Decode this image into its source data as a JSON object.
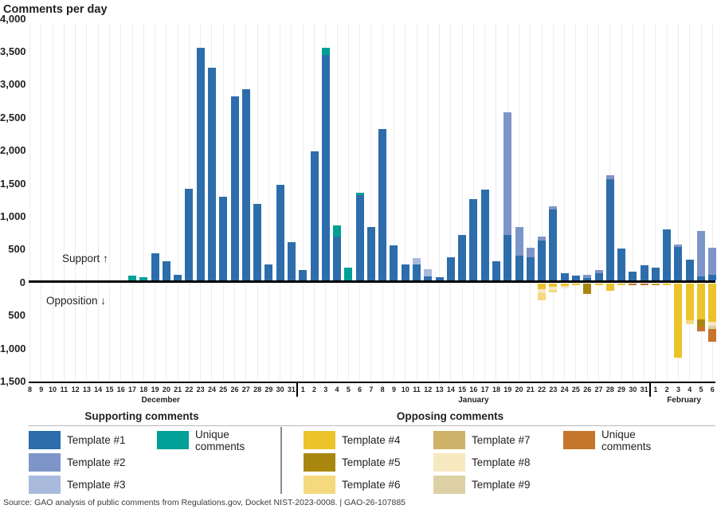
{
  "title": "Comments per day",
  "annotations": {
    "support": "Support ↑",
    "opposition": "Opposition ↓"
  },
  "source": "Source: GAO analysis of public comments from Regulations.gov, Docket NIST-2023-0008.  |  GAO-26-107885",
  "colors": {
    "t1": "#2d6dab",
    "t2": "#7e95c9",
    "t3": "#a9badd",
    "us": "#00a096",
    "t4": "#edc32b",
    "t5": "#a9870f",
    "t6": "#f4d97e",
    "t7": "#cfb269",
    "t8": "#f6e8bf",
    "t9": "#ddd0a4",
    "uo": "#c6752c"
  },
  "legend": {
    "supporting": {
      "header": "Supporting comments",
      "items": [
        {
          "key": "t1",
          "label": "Template #1",
          "col": 0,
          "row": 0
        },
        {
          "key": "t2",
          "label": "Template #2",
          "col": 0,
          "row": 1
        },
        {
          "key": "t3",
          "label": "Template #3",
          "col": 0,
          "row": 2
        },
        {
          "key": "us",
          "label": "Unique comments",
          "col": 1,
          "row": 0,
          "wrap": true
        }
      ]
    },
    "opposing": {
      "header": "Opposing comments",
      "items": [
        {
          "key": "t4",
          "label": "Template #4",
          "col": 0,
          "row": 0
        },
        {
          "key": "t5",
          "label": "Template #5",
          "col": 0,
          "row": 1
        },
        {
          "key": "t6",
          "label": "Template #6",
          "col": 0,
          "row": 2
        },
        {
          "key": "t7",
          "label": "Template #7",
          "col": 1,
          "row": 0
        },
        {
          "key": "t8",
          "label": "Template #8",
          "col": 1,
          "row": 1
        },
        {
          "key": "t9",
          "label": "Template #9",
          "col": 1,
          "row": 2
        },
        {
          "key": "uo",
          "label": "Unique comments",
          "col": 2,
          "row": 0,
          "wrap": true
        }
      ]
    }
  },
  "chart_data": {
    "type": "bar",
    "stacked": true,
    "title": "Comments per day",
    "y_axis_labels": [
      "4,000",
      "3,500",
      "3,000",
      "2,500",
      "2,000",
      "1,500",
      "1,000",
      "500",
      "0",
      "500",
      "1,000",
      "1,500"
    ],
    "y_max": 4000,
    "y_min": -1500,
    "grid": "vertical-per-day",
    "months": [
      "December",
      "January",
      "February"
    ],
    "days": [
      {
        "month": "December",
        "day": 8,
        "support": [],
        "oppose": []
      },
      {
        "month": "December",
        "day": 9,
        "support": [],
        "oppose": []
      },
      {
        "month": "December",
        "day": 10,
        "support": [],
        "oppose": []
      },
      {
        "month": "December",
        "day": 11,
        "support": [],
        "oppose": []
      },
      {
        "month": "December",
        "day": 12,
        "support": [],
        "oppose": []
      },
      {
        "month": "December",
        "day": 13,
        "support": [],
        "oppose": []
      },
      {
        "month": "December",
        "day": 14,
        "support": [],
        "oppose": []
      },
      {
        "month": "December",
        "day": 15,
        "support": [],
        "oppose": []
      },
      {
        "month": "December",
        "day": 16,
        "support": [],
        "oppose": []
      },
      {
        "month": "December",
        "day": 17,
        "support": [
          [
            "us",
            80
          ]
        ],
        "oppose": []
      },
      {
        "month": "December",
        "day": 18,
        "support": [
          [
            "us",
            50
          ]
        ],
        "oppose": []
      },
      {
        "month": "December",
        "day": 19,
        "support": [
          [
            "t1",
            420
          ]
        ],
        "oppose": []
      },
      {
        "month": "December",
        "day": 20,
        "support": [
          [
            "t1",
            300
          ]
        ],
        "oppose": []
      },
      {
        "month": "December",
        "day": 21,
        "support": [
          [
            "t1",
            85
          ]
        ],
        "oppose": []
      },
      {
        "month": "December",
        "day": 22,
        "support": [
          [
            "t1",
            1390
          ]
        ],
        "oppose": []
      },
      {
        "month": "December",
        "day": 23,
        "support": [
          [
            "t1",
            3530
          ]
        ],
        "oppose": []
      },
      {
        "month": "December",
        "day": 24,
        "support": [
          [
            "t1",
            3230
          ]
        ],
        "oppose": []
      },
      {
        "month": "December",
        "day": 25,
        "support": [
          [
            "t1",
            1270
          ]
        ],
        "oppose": []
      },
      {
        "month": "December",
        "day": 26,
        "support": [
          [
            "t1",
            2790
          ]
        ],
        "oppose": []
      },
      {
        "month": "December",
        "day": 27,
        "support": [
          [
            "t1",
            2910
          ]
        ],
        "oppose": []
      },
      {
        "month": "December",
        "day": 28,
        "support": [
          [
            "t1",
            1170
          ]
        ],
        "oppose": []
      },
      {
        "month": "December",
        "day": 29,
        "support": [
          [
            "t1",
            250
          ]
        ],
        "oppose": []
      },
      {
        "month": "December",
        "day": 30,
        "support": [
          [
            "t1",
            1460
          ]
        ],
        "oppose": []
      },
      {
        "month": "December",
        "day": 31,
        "support": [
          [
            "t1",
            590
          ]
        ],
        "oppose": []
      },
      {
        "month": "January",
        "day": 1,
        "support": [
          [
            "t1",
            160
          ]
        ],
        "oppose": []
      },
      {
        "month": "January",
        "day": 2,
        "support": [
          [
            "t1",
            1960
          ]
        ],
        "oppose": []
      },
      {
        "month": "January",
        "day": 3,
        "support": [
          [
            "t1",
            3420
          ],
          [
            "us",
            110
          ]
        ],
        "oppose": []
      },
      {
        "month": "January",
        "day": 4,
        "support": [
          [
            "t1",
            675
          ],
          [
            "us",
            170
          ]
        ],
        "oppose": []
      },
      {
        "month": "January",
        "day": 5,
        "support": [
          [
            "us",
            195
          ]
        ],
        "oppose": []
      },
      {
        "month": "January",
        "day": 6,
        "support": [
          [
            "t1",
            1300
          ],
          [
            "us",
            35
          ]
        ],
        "oppose": []
      },
      {
        "month": "January",
        "day": 7,
        "support": [
          [
            "t1",
            820
          ]
        ],
        "oppose": []
      },
      {
        "month": "January",
        "day": 8,
        "support": [
          [
            "t1",
            2295
          ]
        ],
        "oppose": []
      },
      {
        "month": "January",
        "day": 9,
        "support": [
          [
            "t1",
            540
          ]
        ],
        "oppose": []
      },
      {
        "month": "January",
        "day": 10,
        "support": [
          [
            "t1",
            250
          ]
        ],
        "oppose": []
      },
      {
        "month": "January",
        "day": 11,
        "support": [
          [
            "t1",
            250
          ],
          [
            "t3",
            100
          ]
        ],
        "oppose": []
      },
      {
        "month": "January",
        "day": 12,
        "support": [
          [
            "t1",
            70
          ],
          [
            "t3",
            110
          ]
        ],
        "oppose": []
      },
      {
        "month": "January",
        "day": 13,
        "support": [
          [
            "t1",
            55
          ]
        ],
        "oppose": []
      },
      {
        "month": "January",
        "day": 14,
        "support": [
          [
            "t1",
            360
          ]
        ],
        "oppose": []
      },
      {
        "month": "January",
        "day": 15,
        "support": [
          [
            "t1",
            700
          ]
        ],
        "oppose": []
      },
      {
        "month": "January",
        "day": 16,
        "support": [
          [
            "t1",
            1240
          ]
        ],
        "oppose": []
      },
      {
        "month": "January",
        "day": 17,
        "support": [
          [
            "t1",
            1380
          ]
        ],
        "oppose": []
      },
      {
        "month": "January",
        "day": 18,
        "support": [
          [
            "t1",
            300
          ]
        ],
        "oppose": []
      },
      {
        "month": "January",
        "day": 19,
        "support": [
          [
            "t1",
            690
          ],
          [
            "t2",
            1860
          ]
        ],
        "oppose": []
      },
      {
        "month": "January",
        "day": 20,
        "support": [
          [
            "t1",
            385
          ],
          [
            "t2",
            435
          ]
        ],
        "oppose": []
      },
      {
        "month": "January",
        "day": 21,
        "support": [
          [
            "t1",
            360
          ],
          [
            "t2",
            145
          ]
        ],
        "oppose": []
      },
      {
        "month": "January",
        "day": 22,
        "support": [
          [
            "t1",
            615
          ],
          [
            "t2",
            60
          ]
        ],
        "oppose": [
          [
            "t4",
            95
          ],
          [
            "t8",
            55
          ],
          [
            "t6",
            110
          ]
        ]
      },
      {
        "month": "January",
        "day": 23,
        "support": [
          [
            "t1",
            1075
          ],
          [
            "t2",
            50
          ]
        ],
        "oppose": [
          [
            "t4",
            55
          ],
          [
            "t8",
            45
          ],
          [
            "t6",
            40
          ]
        ]
      },
      {
        "month": "January",
        "day": 24,
        "support": [
          [
            "t1",
            120
          ]
        ],
        "oppose": [
          [
            "t4",
            40
          ],
          [
            "t8",
            40
          ]
        ]
      },
      {
        "month": "January",
        "day": 25,
        "support": [
          [
            "t1",
            75
          ]
        ],
        "oppose": [
          [
            "t4",
            30
          ]
        ]
      },
      {
        "month": "January",
        "day": 26,
        "support": [
          [
            "t1",
            45
          ],
          [
            "t2",
            45
          ]
        ],
        "oppose": [
          [
            "t5",
            160
          ]
        ]
      },
      {
        "month": "January",
        "day": 27,
        "support": [
          [
            "t1",
            120
          ],
          [
            "t2",
            40
          ]
        ],
        "oppose": [
          [
            "t4",
            35
          ]
        ]
      },
      {
        "month": "January",
        "day": 28,
        "support": [
          [
            "t1",
            1535
          ],
          [
            "t2",
            60
          ]
        ],
        "oppose": [
          [
            "t4",
            110
          ]
        ]
      },
      {
        "month": "January",
        "day": 29,
        "support": [
          [
            "t1",
            495
          ]
        ],
        "oppose": [
          [
            "t4",
            25
          ]
        ]
      },
      {
        "month": "January",
        "day": 30,
        "support": [
          [
            "t1",
            135
          ]
        ],
        "oppose": [
          [
            "uo",
            30
          ]
        ]
      },
      {
        "month": "January",
        "day": 31,
        "support": [
          [
            "t1",
            240
          ]
        ],
        "oppose": [
          [
            "uo",
            30
          ]
        ]
      },
      {
        "month": "February",
        "day": 1,
        "support": [
          [
            "t1",
            205
          ]
        ],
        "oppose": [
          [
            "t4",
            15
          ],
          [
            "uo",
            15
          ]
        ]
      },
      {
        "month": "February",
        "day": 2,
        "support": [
          [
            "t1",
            775
          ]
        ],
        "oppose": [
          [
            "t4",
            25
          ]
        ]
      },
      {
        "month": "February",
        "day": 3,
        "support": [
          [
            "t1",
            515
          ],
          [
            "t2",
            40
          ]
        ],
        "oppose": [
          [
            "t4",
            1135
          ]
        ]
      },
      {
        "month": "February",
        "day": 4,
        "support": [
          [
            "t1",
            315
          ]
        ],
        "oppose": [
          [
            "t4",
            560
          ],
          [
            "t6",
            60
          ]
        ]
      },
      {
        "month": "February",
        "day": 5,
        "support": [
          [
            "t1",
            70
          ],
          [
            "t2",
            680
          ]
        ],
        "oppose": [
          [
            "t4",
            555
          ],
          [
            "t5",
            100
          ],
          [
            "uo",
            70
          ]
        ]
      },
      {
        "month": "February",
        "day": 6,
        "support": [
          [
            "t1",
            85
          ],
          [
            "t2",
            420
          ]
        ],
        "oppose": [
          [
            "t4",
            580
          ],
          [
            "t8",
            65
          ],
          [
            "t9",
            55
          ],
          [
            "uo",
            190
          ]
        ]
      }
    ]
  }
}
